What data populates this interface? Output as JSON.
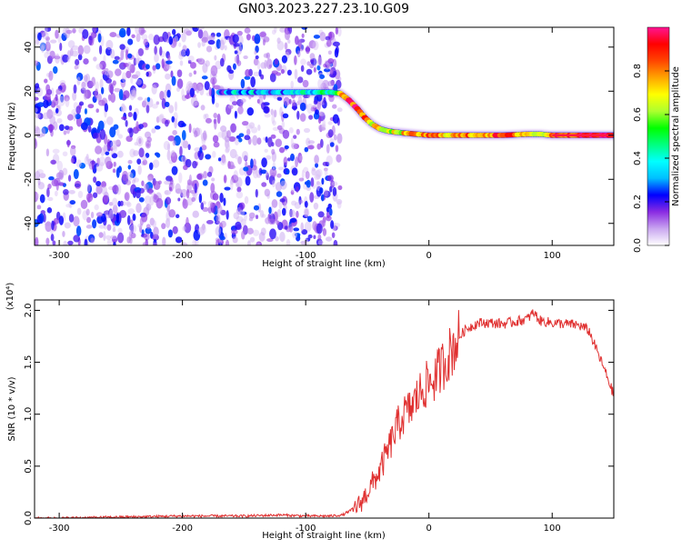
{
  "title": "GN03.2023.227.23.10.G09",
  "colorbar": {
    "label": "Normalized spectral amplitude",
    "ticks": [
      "0.0",
      "0.2",
      "0.4",
      "0.6",
      "0.8"
    ],
    "tick_values": [
      0.0,
      0.2,
      0.4,
      0.6,
      0.8
    ],
    "range": [
      0,
      1
    ],
    "colors": [
      "#ffffff",
      "#c9a6f0",
      "#8a2be2",
      "#0000ff",
      "#00bfff",
      "#00ffff",
      "#00ff7f",
      "#00ff00",
      "#adff2f",
      "#ffff00",
      "#ffa500",
      "#ff4500",
      "#ff0000",
      "#ff1493"
    ]
  },
  "chart_data": [
    {
      "type": "heatmap",
      "xlabel": "Height of straight line (km)",
      "ylabel": "Frequency (Hz)",
      "xlim": [
        -320,
        150
      ],
      "ylim": [
        -50,
        49
      ],
      "x_ticks": [
        -300,
        -200,
        -100,
        0,
        100
      ],
      "x_tick_labels": [
        "-300",
        "-200",
        "-100",
        "0",
        "100"
      ],
      "y_ticks": [
        -40,
        -20,
        0,
        20,
        40
      ],
      "y_tick_labels": [
        "-40",
        "-20",
        "0",
        "20",
        "40"
      ],
      "noise_region": {
        "x_range": [
          -320,
          -72
        ],
        "amplitude": "low"
      },
      "signal_ridge": {
        "x": [
          -170,
          -150,
          -130,
          -110,
          -90,
          -80,
          -72,
          -65,
          -58,
          -52,
          -46,
          -40,
          -34,
          -28,
          -20,
          -10,
          0,
          20,
          40,
          60,
          80,
          90,
          100,
          120,
          150
        ],
        "freq": [
          19.5,
          19.5,
          19.5,
          19.5,
          19.5,
          19.5,
          19,
          16,
          12,
          8,
          5,
          3,
          2,
          1.5,
          1,
          0.5,
          0,
          0,
          0,
          0,
          0.5,
          0.5,
          0,
          0,
          0
        ],
        "amplitude": [
          0.25,
          0.35,
          0.3,
          0.35,
          0.4,
          0.45,
          0.7,
          0.85,
          0.9,
          0.8,
          0.7,
          0.65,
          0.6,
          0.65,
          0.7,
          0.75,
          0.8,
          0.75,
          0.8,
          0.85,
          0.75,
          0.6,
          0.85,
          0.9,
          0.95
        ]
      }
    },
    {
      "type": "line",
      "xlabel": "Height of straight line (km)",
      "ylabel": "SNR (10 * v/v)",
      "yscale_label": "(x10⁴)",
      "xlim": [
        -320,
        150
      ],
      "ylim": [
        0,
        2.1
      ],
      "x_ticks": [
        -300,
        -200,
        -100,
        0,
        100
      ],
      "x_tick_labels": [
        "-300",
        "-200",
        "-100",
        "0",
        "100"
      ],
      "y_ticks": [
        0.0,
        0.5,
        1.0,
        1.5,
        2.0
      ],
      "y_tick_labels": [
        "0.0",
        "0.5",
        "1.0",
        "1.5",
        "2.0"
      ],
      "color": "#e03030",
      "series": [
        {
          "x": [
            -320,
            -300,
            -250,
            -200,
            -150,
            -120,
            -100,
            -80,
            -70,
            -60,
            -55,
            -50,
            -45,
            -40,
            -35,
            -30,
            -25,
            -20,
            -15,
            -10,
            -5,
            0,
            5,
            10,
            15,
            20,
            25,
            30,
            35,
            40,
            50,
            60,
            70,
            80,
            85,
            90,
            100,
            110,
            120,
            125,
            130,
            135,
            140,
            145,
            150
          ],
          "y": [
            0.0,
            0.0,
            0.01,
            0.02,
            0.02,
            0.03,
            0.02,
            0.02,
            0.03,
            0.1,
            0.15,
            0.25,
            0.35,
            0.45,
            0.6,
            0.75,
            0.9,
            1.0,
            1.05,
            1.15,
            1.25,
            1.3,
            1.35,
            1.45,
            1.55,
            1.65,
            1.75,
            1.82,
            1.85,
            1.88,
            1.88,
            1.87,
            1.89,
            1.92,
            1.98,
            1.9,
            1.88,
            1.87,
            1.86,
            1.84,
            1.8,
            1.65,
            1.5,
            1.35,
            1.18
          ]
        }
      ]
    }
  ]
}
